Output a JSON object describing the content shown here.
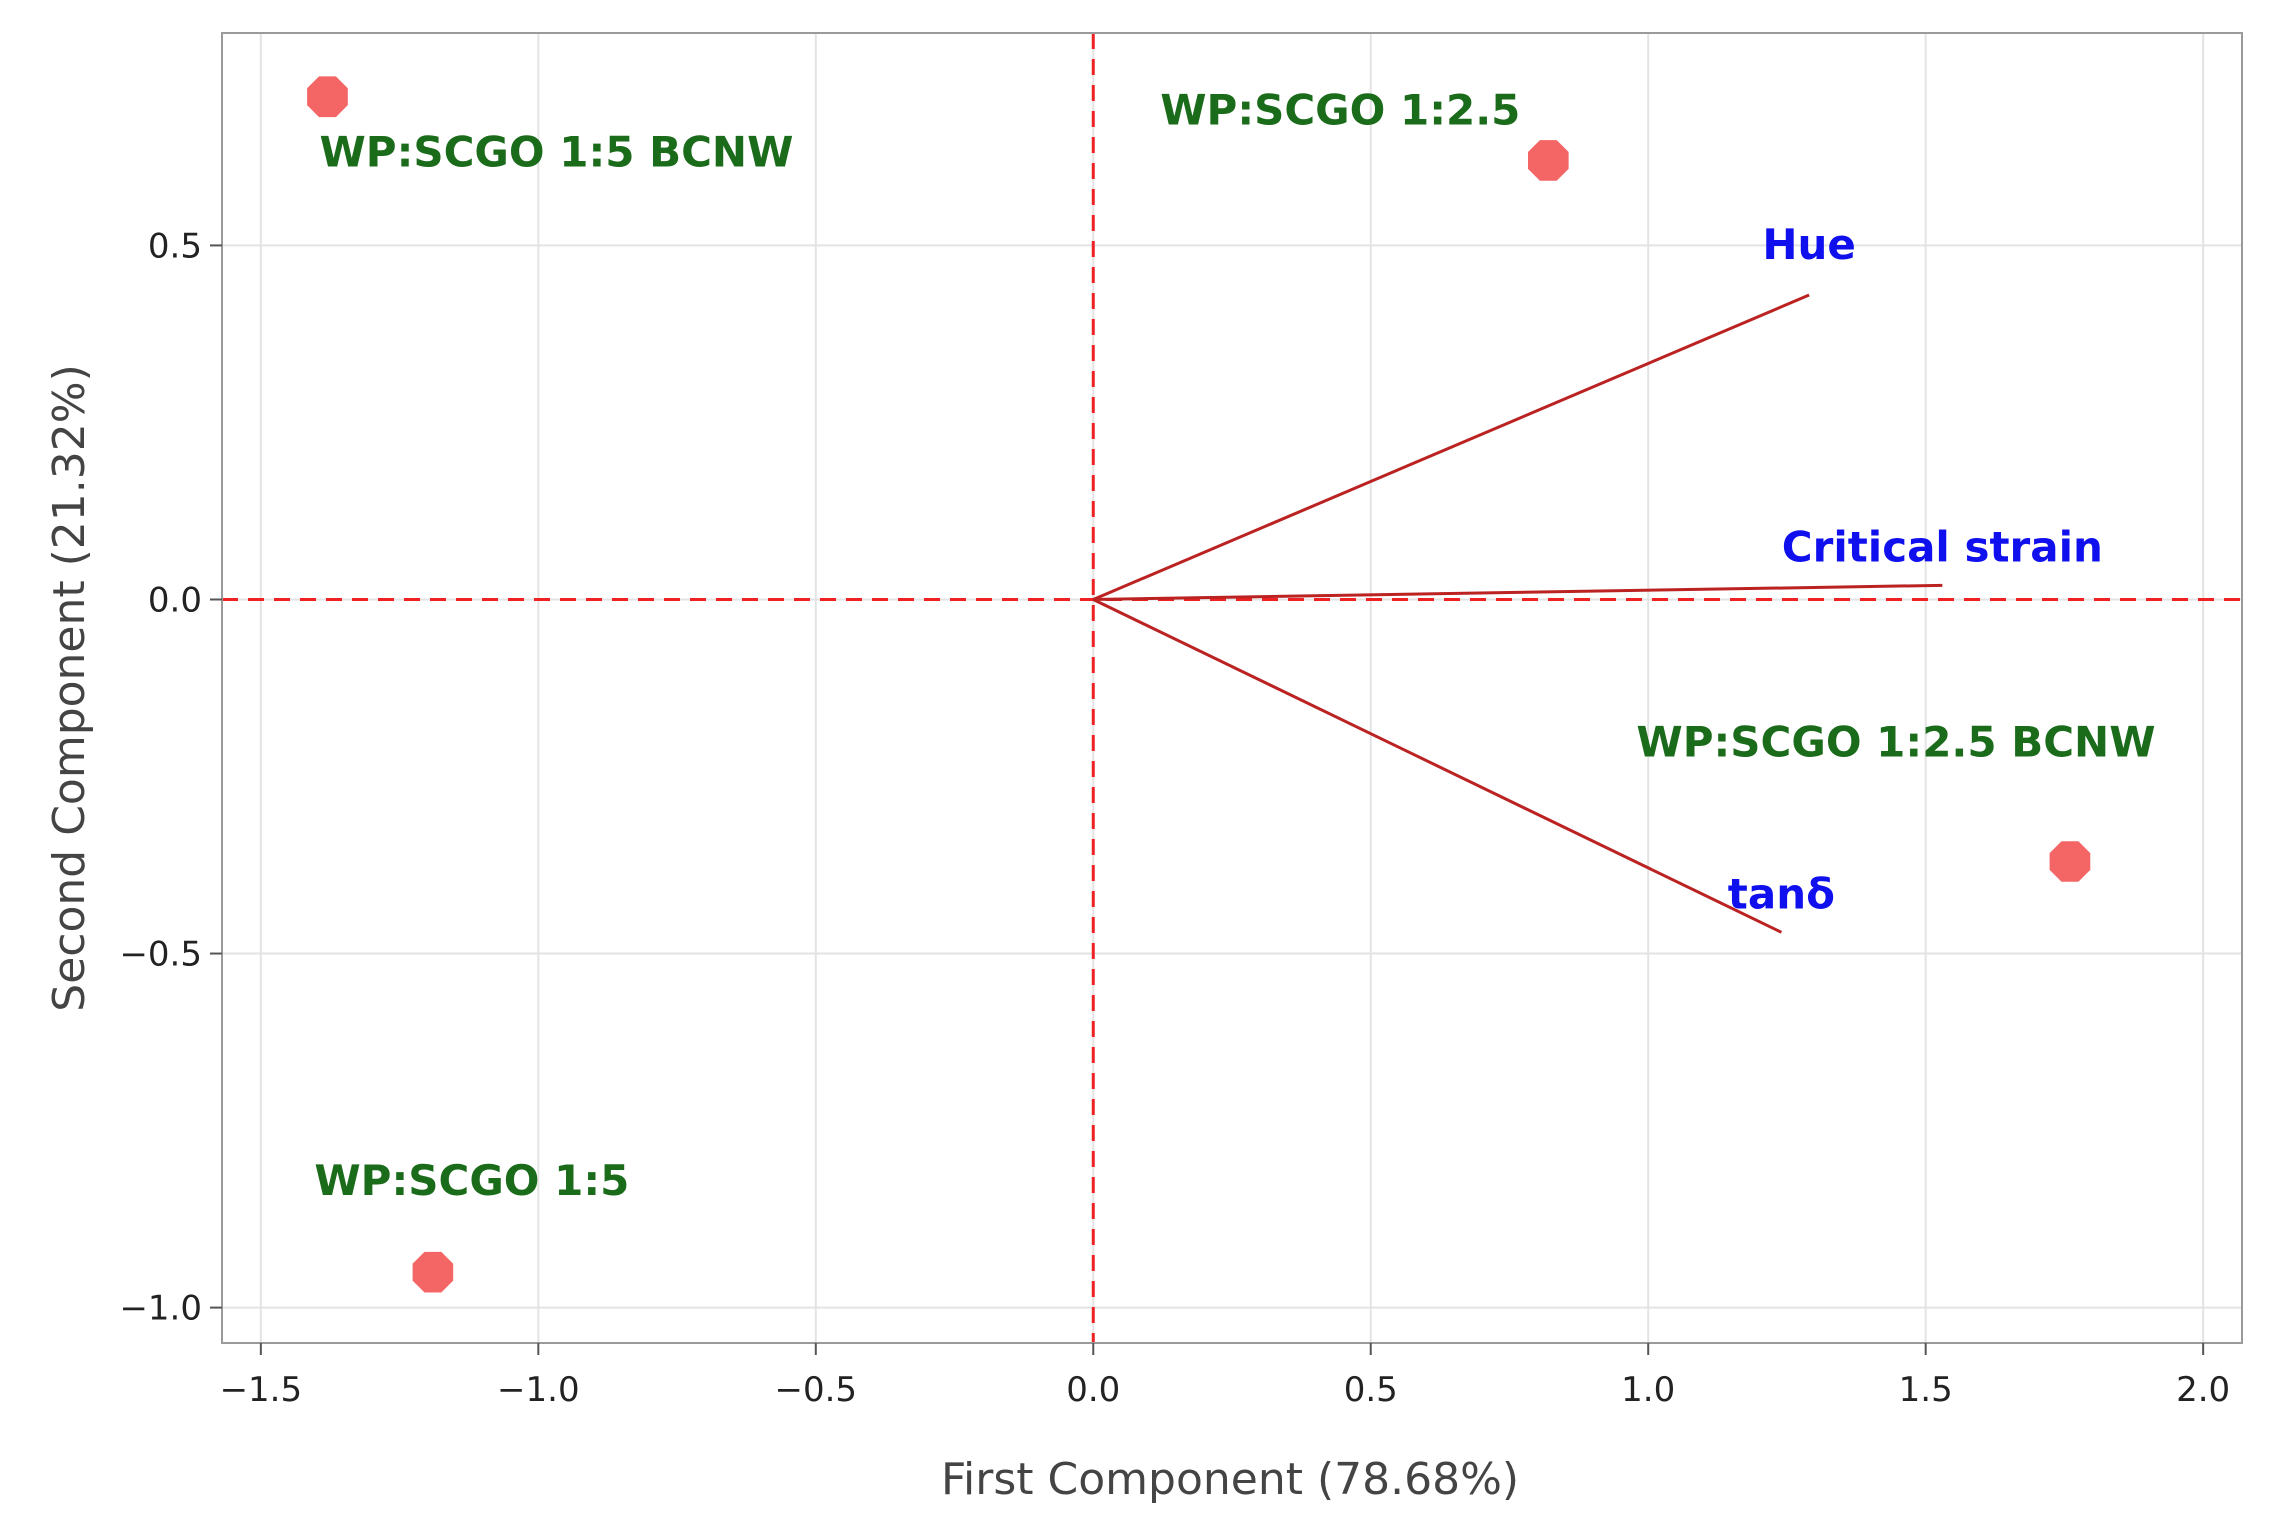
{
  "chart_data": {
    "type": "scatter",
    "subtype": "biplot",
    "xlabel": "First Component (78.68%)",
    "ylabel": "Second Component (21.32%)",
    "xlim": [
      -1.57,
      2.07
    ],
    "ylim": [
      -1.05,
      0.8
    ],
    "xticks": [
      -1.5,
      -1.0,
      -0.5,
      0.0,
      0.5,
      1.0,
      1.5,
      2.0
    ],
    "xtick_labels": [
      "−1.5",
      "−1.0",
      "−0.5",
      "0.0",
      "0.5",
      "1.0",
      "1.5",
      "2.0"
    ],
    "yticks": [
      -1.0,
      -0.5,
      0.0,
      0.5
    ],
    "ytick_labels": [
      "−1.0",
      "−0.5",
      "0.0",
      "0.5"
    ],
    "grid": true,
    "reference_lines": {
      "x": 0,
      "y": 0,
      "color": "#ee2222",
      "style": "dashed"
    },
    "points": [
      {
        "label": "WP:SCGO 1:5 BCNW",
        "x": -1.38,
        "y": 0.71
      },
      {
        "label": "WP:SCGO 1:2.5",
        "x": 0.82,
        "y": 0.62
      },
      {
        "label": "WP:SCGO 1:2.5 BCNW",
        "x": 1.76,
        "y": -0.37
      },
      {
        "label": "WP:SCGO 1:5",
        "x": -1.19,
        "y": -0.95
      }
    ],
    "vectors": [
      {
        "label": "Hue",
        "x": 1.29,
        "y": 0.43
      },
      {
        "label": "Critical strain",
        "x": 1.53,
        "y": 0.02
      },
      {
        "label": "tanδ",
        "x": 1.24,
        "y": -0.47
      }
    ],
    "colors": {
      "point": "#f46565",
      "point_label": "#1a6b1a",
      "vector": "#bb2222",
      "vector_label": "#1010ee",
      "reference": "#ee2222",
      "grid": "#e3e3e3",
      "frame": "#9a9a9a"
    }
  }
}
